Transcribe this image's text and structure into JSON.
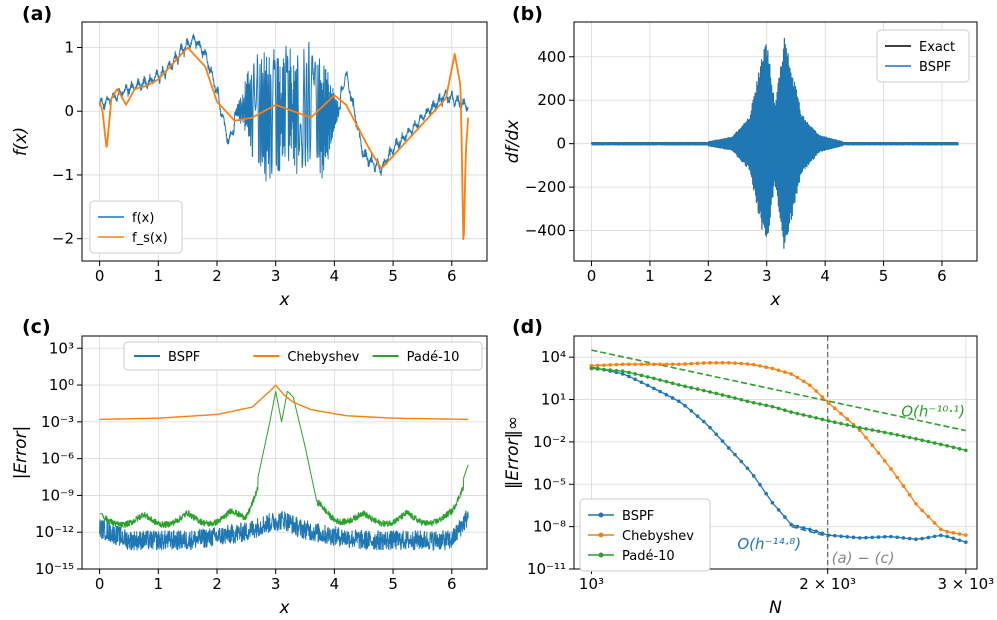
{
  "chart_data": [
    {
      "panel": "(a)",
      "type": "line",
      "xlabel": "x",
      "ylabel": "f(x)",
      "xlim": [
        -0.3,
        6.6
      ],
      "ylim": [
        -2.35,
        1.4
      ],
      "xticks": [
        "0",
        "1",
        "2",
        "3",
        "4",
        "5",
        "6"
      ],
      "yticks": [
        "1",
        "0",
        "−1",
        "−2"
      ],
      "grid": true,
      "legend": "lower-left",
      "series": [
        {
          "name": "f(x)",
          "color": "#1f77b4",
          "x": [
            0,
            0.2,
            0.5,
            0.8,
            1.1,
            1.4,
            1.6,
            1.8,
            2.0,
            2.2,
            2.5,
            2.7,
            3.14,
            3.6,
            3.8,
            4.2,
            4.5,
            4.8,
            5.0,
            5.3,
            5.6,
            5.9,
            6.1,
            6.28
          ],
          "y": [
            0.1,
            0.2,
            0.35,
            0.45,
            0.6,
            0.95,
            1.15,
            0.9,
            0.3,
            -0.5,
            0.4,
            -0.8,
            0.0,
            0.5,
            -0.9,
            0.6,
            -0.7,
            -0.9,
            -0.6,
            -0.3,
            0.0,
            0.25,
            0.15,
            0.05
          ]
        },
        {
          "name": "f_s(x)",
          "color": "#ff7f0e",
          "x": [
            0,
            0.05,
            0.12,
            0.2,
            0.3,
            0.45,
            0.6,
            0.8,
            1.0,
            1.2,
            1.5,
            1.8,
            2.0,
            2.3,
            2.6,
            3.0,
            3.3,
            3.6,
            4.0,
            4.2,
            4.6,
            4.8,
            5.0,
            5.3,
            5.6,
            5.9,
            6.05,
            6.15,
            6.2,
            6.24,
            6.28
          ],
          "y": [
            0.15,
            0.0,
            -0.6,
            0.2,
            0.35,
            0.1,
            0.35,
            0.4,
            0.5,
            0.7,
            1.0,
            0.7,
            0.15,
            -0.15,
            -0.1,
            0.1,
            0.0,
            -0.1,
            0.25,
            0.1,
            -0.6,
            -0.9,
            -0.7,
            -0.4,
            -0.1,
            0.2,
            0.9,
            0.4,
            -2.2,
            -0.6,
            -0.1
          ]
        }
      ]
    },
    {
      "panel": "(b)",
      "type": "line",
      "xlabel": "x",
      "ylabel": "df/dx",
      "xlim": [
        -0.3,
        6.6
      ],
      "ylim": [
        -540,
        560
      ],
      "xticks": [
        "0",
        "1",
        "2",
        "3",
        "4",
        "5",
        "6"
      ],
      "yticks": [
        "400",
        "200",
        "0",
        "−200",
        "−400"
      ],
      "grid": true,
      "legend": "upper-right",
      "series": [
        {
          "name": "Exact",
          "color": "#000000"
        },
        {
          "name": "BSPF",
          "color": "#1f77b4",
          "envelope_x": [
            2.0,
            2.4,
            2.7,
            2.9,
            3.0,
            3.14,
            3.3,
            3.4,
            3.6,
            3.9,
            4.3
          ],
          "envelope_amp": [
            10,
            30,
            120,
            380,
            480,
            180,
            500,
            380,
            140,
            40,
            10
          ]
        }
      ]
    },
    {
      "panel": "(c)",
      "type": "line",
      "xlabel": "x",
      "ylabel": "|Error|",
      "yscale": "log",
      "xlim": [
        -0.3,
        6.6
      ],
      "ylim_log10": [
        -15,
        4
      ],
      "xticks": [
        "0",
        "1",
        "2",
        "3",
        "4",
        "5",
        "6"
      ],
      "yticks": [
        "10³",
        "10⁰",
        "10⁻³",
        "10⁻⁶",
        "10⁻⁹",
        "10⁻¹²",
        "10⁻¹⁵"
      ],
      "grid": true,
      "legend": "top",
      "series": [
        {
          "name": "BSPF",
          "color": "#1f77b4",
          "x": [
            0,
            0.5,
            1.0,
            1.5,
            2.0,
            2.5,
            2.8,
            3.14,
            3.4,
            3.8,
            4.5,
            5.0,
            5.5,
            6.0,
            6.28
          ],
          "log10_y": [
            -11.5,
            -12.5,
            -12.5,
            -12.5,
            -12.2,
            -11.8,
            -11.2,
            -10.8,
            -11.5,
            -12.0,
            -12.5,
            -12.5,
            -12.5,
            -12.5,
            -10.5
          ]
        },
        {
          "name": "Chebyshev",
          "color": "#ff7f0e",
          "x": [
            0,
            1.0,
            2.0,
            2.6,
            2.9,
            3.0,
            3.14,
            3.3,
            3.6,
            4.2,
            5.0,
            6.28
          ],
          "log10_y": [
            -2.8,
            -2.7,
            -2.4,
            -1.8,
            -0.5,
            0.0,
            -0.8,
            -1.4,
            -2.0,
            -2.5,
            -2.7,
            -2.8
          ]
        },
        {
          "name": "Padé-10",
          "color": "#2ca02c",
          "x": [
            0,
            0.5,
            1.0,
            1.5,
            2.0,
            2.5,
            2.7,
            2.9,
            3.0,
            3.1,
            3.2,
            3.3,
            3.5,
            3.7,
            4.0,
            4.5,
            5.0,
            5.5,
            6.0,
            6.28
          ],
          "log10_y": [
            -10.5,
            -10.5,
            -10.5,
            -10.4,
            -10.4,
            -10.0,
            -7.5,
            -3.0,
            -0.5,
            -3.0,
            -0.5,
            -1.0,
            -5.0,
            -9.5,
            -10.2,
            -10.4,
            -10.4,
            -10.4,
            -10.3,
            -6.5
          ]
        }
      ]
    },
    {
      "panel": "(d)",
      "type": "line",
      "xlabel": "N",
      "ylabel": "‖Error‖∞",
      "xscale": "log",
      "yscale": "log",
      "xlim": [
        950,
        3100
      ],
      "ylim_log10": [
        -11,
        5.5
      ],
      "xticks": [
        "10³",
        "2 × 10³",
        "3 × 10³"
      ],
      "yticks": [
        "10⁴",
        "10¹",
        "10⁻²",
        "10⁻⁵",
        "10⁻⁸",
        "10⁻¹¹"
      ],
      "grid": true,
      "legend": "lower-left",
      "vline_x": 2000,
      "vline_label": "(a) − (c)",
      "series": [
        {
          "name": "BSPF",
          "color": "#1f77b4",
          "x": [
            1000,
            1100,
            1200,
            1300,
            1400,
            1500,
            1600,
            1700,
            1800,
            1900,
            2000,
            2200,
            2400,
            2600,
            2800,
            3000
          ],
          "log10_y": [
            3.3,
            2.8,
            1.8,
            0.8,
            -0.7,
            -2.5,
            -4.2,
            -6.3,
            -7.9,
            -8.2,
            -8.6,
            -8.8,
            -8.7,
            -8.9,
            -8.6,
            -9.1
          ]
        },
        {
          "name": "Chebyshev",
          "color": "#ff7f0e",
          "x": [
            1000,
            1100,
            1200,
            1300,
            1400,
            1500,
            1600,
            1700,
            1800,
            1900,
            2000,
            2200,
            2400,
            2600,
            2800,
            3000
          ],
          "log10_y": [
            3.4,
            3.5,
            3.5,
            3.5,
            3.6,
            3.6,
            3.5,
            3.2,
            2.8,
            2.0,
            0.8,
            -1.2,
            -3.8,
            -6.5,
            -8.3,
            -8.6
          ]
        },
        {
          "name": "Padé-10",
          "color": "#2ca02c",
          "x": [
            1000,
            1100,
            1200,
            1300,
            1400,
            1500,
            1600,
            1700,
            1800,
            1900,
            2000,
            2200,
            2400,
            2600,
            2800,
            3000
          ],
          "log10_y": [
            3.2,
            3.0,
            2.5,
            2.0,
            1.6,
            1.2,
            0.8,
            0.5,
            0.1,
            -0.2,
            -0.5,
            -1.0,
            -1.4,
            -1.8,
            -2.2,
            -2.6
          ]
        }
      ],
      "references": [
        {
          "label": "O(h⁻¹⁰·¹)",
          "color": "#2ca02c",
          "x": [
            1000,
            3000
          ],
          "log10_y": [
            4.5,
            -1.2
          ]
        },
        {
          "label": "O(h⁻¹⁴·⁸)",
          "color": "#1f77b4",
          "x": [
            1800,
            2000
          ],
          "log10_y": [
            -8.0,
            -8.7
          ]
        }
      ]
    }
  ]
}
